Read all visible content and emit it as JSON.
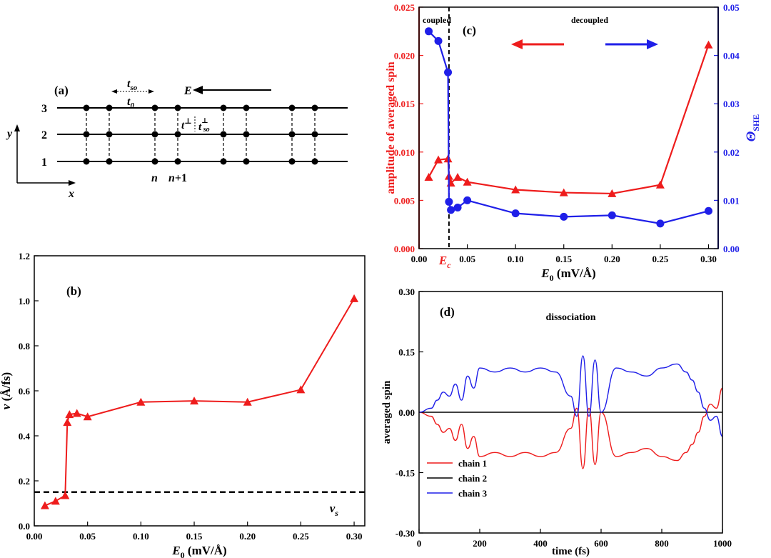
{
  "colors": {
    "red": "#ee1c1c",
    "blue": "#1f1fe8",
    "black": "#000000"
  },
  "panel_a": {
    "label": "(a)",
    "chain_labels": [
      "3",
      "2",
      "1"
    ],
    "t_so": "t",
    "t_so_sub": "so",
    "t_0": "t",
    "t_0_sub": "0",
    "E_label": "E",
    "t_perp": "t",
    "t_perp_sup": "⊥",
    "t_so_perp": "t",
    "t_so_perp_sub": "so",
    "t_so_perp_sup": "⊥",
    "site_n": "n",
    "site_n1": "n",
    "site_n1_suffix": "+1",
    "axis_x": "x",
    "axis_y": "y"
  },
  "chart_data": [
    {
      "id": "b",
      "panel_label": "(b)",
      "type": "line",
      "xlabel": "E",
      "xlabel_sub": "0",
      "xlabel_unit": " (mV/Å)",
      "ylabel": "v",
      "ylabel_unit": " (Å/fs)",
      "xlim": [
        0.0,
        0.31
      ],
      "ylim": [
        0.0,
        1.2
      ],
      "xticks": [
        "0.00",
        "0.05",
        "0.10",
        "0.15",
        "0.20",
        "0.25",
        "0.30"
      ],
      "xtick_values": [
        0.0,
        0.05,
        0.1,
        0.15,
        0.2,
        0.25,
        0.3
      ],
      "yticks": [
        "0.0",
        "0.2",
        "0.4",
        "0.6",
        "0.8",
        "1.0",
        "1.2"
      ],
      "ytick_values": [
        0.0,
        0.2,
        0.4,
        0.6,
        0.8,
        1.0,
        1.2
      ],
      "series": [
        {
          "color": "#ee1c1c",
          "marker": "triangle",
          "x": [
            0.01,
            0.02,
            0.029,
            0.031,
            0.033,
            0.04,
            0.05,
            0.1,
            0.15,
            0.2,
            0.25,
            0.3
          ],
          "y": [
            0.09,
            0.11,
            0.135,
            0.46,
            0.495,
            0.5,
            0.485,
            0.55,
            0.555,
            0.55,
            0.605,
            1.01
          ]
        }
      ],
      "hline": {
        "y": 0.15,
        "label": "v",
        "label_sub": "s"
      }
    },
    {
      "id": "c",
      "panel_label": "(c)",
      "type": "line",
      "xlabel": "E",
      "xlabel_sub": "0",
      "xlabel_unit": " (mV/Å)",
      "ylabel": "amplitude of averaged spin",
      "y2label": "Θ",
      "y2label_sub": "SHE",
      "xlim": [
        0.0,
        0.31
      ],
      "ylim": [
        0.0,
        0.025
      ],
      "y2lim": [
        0.0,
        0.05
      ],
      "xticks": [
        "0.00",
        "0.05",
        "0.10",
        "0.15",
        "0.20",
        "0.25",
        "0.30"
      ],
      "xtick_values": [
        0.0,
        0.05,
        0.1,
        0.15,
        0.2,
        0.25,
        0.3
      ],
      "yticks": [
        "0.000",
        "0.005",
        "0.010",
        "0.015",
        "0.020",
        "0.025"
      ],
      "ytick_values": [
        0.0,
        0.005,
        0.01,
        0.015,
        0.02,
        0.025
      ],
      "y2ticks": [
        "0.00",
        "0.01",
        "0.02",
        "0.03",
        "0.04",
        "0.05"
      ],
      "y2tick_values": [
        0.0,
        0.01,
        0.02,
        0.03,
        0.04,
        0.05
      ],
      "vline": {
        "x": 0.031,
        "label": "E",
        "label_sub": "c"
      },
      "region_left": "coupled",
      "region_right": "decoupled",
      "series": [
        {
          "color": "#ee1c1c",
          "marker": "triangle",
          "axis": "left",
          "x": [
            0.01,
            0.02,
            0.03,
            0.031,
            0.033,
            0.04,
            0.05,
            0.1,
            0.15,
            0.2,
            0.25,
            0.3
          ],
          "y": [
            0.0074,
            0.0092,
            0.0093,
            0.0075,
            0.0068,
            0.0074,
            0.0069,
            0.0061,
            0.0058,
            0.0057,
            0.0066,
            0.0211
          ]
        },
        {
          "color": "#1f1fe8",
          "marker": "circle",
          "axis": "right",
          "x": [
            0.01,
            0.02,
            0.03,
            0.031,
            0.033,
            0.04,
            0.05,
            0.1,
            0.15,
            0.2,
            0.25,
            0.3
          ],
          "y": [
            0.045,
            0.043,
            0.0365,
            0.0097,
            0.008,
            0.0085,
            0.01,
            0.0073,
            0.0066,
            0.0069,
            0.0052,
            0.0078
          ]
        }
      ]
    },
    {
      "id": "d",
      "panel_label": "(d)",
      "type": "line",
      "title": "dissociation",
      "xlabel": "time (fs)",
      "ylabel": "averaged spin",
      "xlim": [
        0,
        1000
      ],
      "ylim": [
        -0.3,
        0.3
      ],
      "xticks": [
        "0",
        "200",
        "400",
        "600",
        "800",
        "1000"
      ],
      "xtick_values": [
        0,
        200,
        400,
        600,
        800,
        1000
      ],
      "yticks": [
        "-0.30",
        "-0.15",
        "0.00",
        "0.15",
        "0.30"
      ],
      "ytick_values": [
        -0.3,
        -0.15,
        0.0,
        0.15,
        0.3
      ],
      "legend_position": "bottom-left",
      "series": [
        {
          "name": "chain 1",
          "color": "#ee1c1c",
          "x": [
            0,
            40,
            60,
            80,
            100,
            120,
            140,
            160,
            180,
            200,
            250,
            300,
            350,
            400,
            450,
            500,
            520,
            540,
            560,
            580,
            600,
            650,
            700,
            750,
            800,
            850,
            880,
            900,
            920,
            940,
            960,
            980,
            1000
          ],
          "y": [
            0.0,
            -0.01,
            -0.03,
            -0.05,
            -0.04,
            -0.07,
            -0.03,
            -0.09,
            -0.06,
            -0.11,
            -0.1,
            -0.11,
            -0.1,
            -0.11,
            -0.1,
            -0.04,
            0.01,
            -0.14,
            0.01,
            -0.13,
            0.0,
            -0.11,
            -0.1,
            -0.09,
            -0.11,
            -0.12,
            -0.1,
            -0.08,
            -0.05,
            -0.01,
            0.02,
            0.01,
            0.06
          ]
        },
        {
          "name": "chain 2",
          "color": "#000000",
          "x": [
            0,
            1000
          ],
          "y": [
            0.0,
            0.0
          ]
        },
        {
          "name": "chain 3",
          "color": "#1f1fe8",
          "x": [
            0,
            40,
            60,
            80,
            100,
            120,
            140,
            160,
            180,
            200,
            250,
            300,
            350,
            400,
            450,
            500,
            520,
            540,
            560,
            580,
            600,
            650,
            700,
            750,
            800,
            850,
            880,
            900,
            920,
            940,
            960,
            980,
            1000
          ],
          "y": [
            0.0,
            0.01,
            0.03,
            0.05,
            0.04,
            0.07,
            0.03,
            0.09,
            0.06,
            0.11,
            0.1,
            0.11,
            0.1,
            0.11,
            0.1,
            0.04,
            -0.01,
            0.14,
            -0.01,
            0.13,
            0.0,
            0.11,
            0.1,
            0.09,
            0.11,
            0.12,
            0.1,
            0.08,
            0.05,
            0.01,
            -0.02,
            -0.01,
            -0.06
          ]
        }
      ]
    }
  ]
}
